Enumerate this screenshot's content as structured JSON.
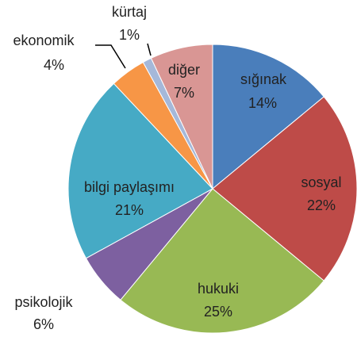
{
  "chart_data": {
    "type": "pie",
    "categories": [
      "sığınak",
      "sosyal",
      "hukuki",
      "psikolojik",
      "bilgi paylaşımı",
      "ekonomik",
      "kürtaj",
      "diğer"
    ],
    "values": [
      14,
      22,
      25,
      6,
      21,
      4,
      1,
      7
    ],
    "value_labels": [
      "14%",
      "22%",
      "25%",
      "6%",
      "21%",
      "4%",
      "1%",
      "7%"
    ],
    "colors": [
      "#4a7ebb",
      "#be4b48",
      "#98b954",
      "#7d60a0",
      "#46aac5",
      "#f79646",
      "#a5b8d9",
      "#d99694"
    ]
  }
}
